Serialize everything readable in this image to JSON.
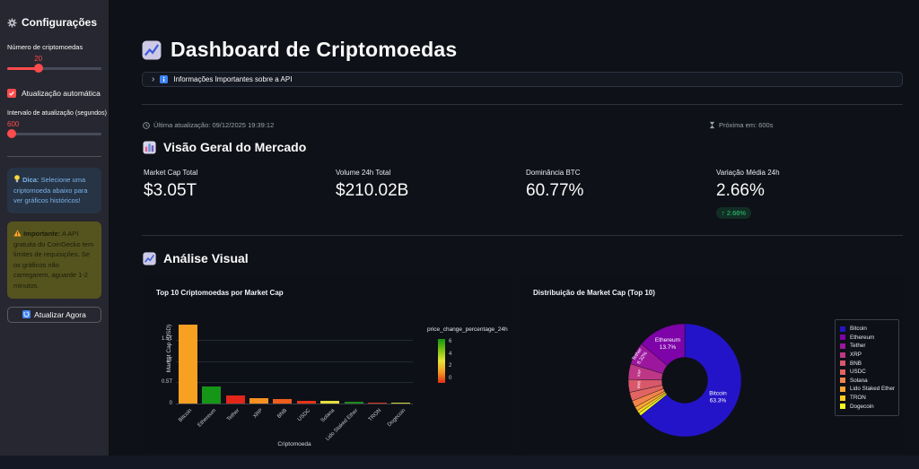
{
  "sidebar": {
    "title": "Configurações",
    "count_slider": {
      "label": "Número de criptomoedas",
      "value": "20"
    },
    "auto_checkbox": {
      "label": "Atualização automática",
      "checked": true
    },
    "interval_slider": {
      "label": "Intervalo de atualização (segundos)",
      "value": "600"
    },
    "tip": {
      "title": "Dica:",
      "text": " Selecione uma criptomoeda abaixo para ver gráficos históricos!"
    },
    "warning": {
      "title": "Importante:",
      "text": " A API gratuita do CoinGecko tem limites de requisições. Se os gráficos não carregarem, aguarde 1-2 minutos."
    },
    "refresh_button": "Atualizar Agora"
  },
  "header": {
    "title": "Dashboard de Criptomoedas"
  },
  "expander": {
    "chevron": "›",
    "label": "Informações Importantes sobre a API"
  },
  "status_bar": {
    "last_update": "Última atualização: 09/12/2025 19:39:12",
    "next_update": "Próxima em: 600s"
  },
  "market_overview": {
    "title": "Visão Geral do Mercado",
    "metrics": [
      {
        "label": "Market Cap Total",
        "value": "$3.05T"
      },
      {
        "label": "Volume 24h Total",
        "value": "$210.02B"
      },
      {
        "label": "Dominância BTC",
        "value": "60.77%"
      },
      {
        "label": "Variação Média 24h",
        "value": "2.66%",
        "delta": "↑ 2.66%"
      }
    ]
  },
  "analysis": {
    "title": "Análise Visual"
  },
  "chart_data": [
    {
      "type": "bar",
      "title": "Top 10 Criptomoedas por Market Cap",
      "xlabel": "Criptomoeda",
      "ylabel": "Market Cap (USD)",
      "ylim": [
        0,
        2.05
      ],
      "grid": true,
      "yticks": [
        {
          "label": "0",
          "value": 0
        },
        {
          "label": "0.5T",
          "value": 0.5
        },
        {
          "label": "1T",
          "value": 1.0
        },
        {
          "label": "1.5T",
          "value": 1.5
        }
      ],
      "categories": [
        "Bitcoin",
        "Ethereum",
        "Tether",
        "XRP",
        "BNB",
        "USDC",
        "Solana",
        "Lido Staked Ether",
        "TRON",
        "Dogecoin"
      ],
      "values_trillions_usd": [
        1.85,
        0.4,
        0.185,
        0.12,
        0.115,
        0.072,
        0.07,
        0.032,
        0.027,
        0.02
      ],
      "bar_colors": [
        "#f7a021",
        "#169616",
        "#e3261a",
        "#f59121",
        "#ef5d1c",
        "#e63318",
        "#e3df3a",
        "#1d8a1d",
        "#d8301f",
        "#c8cf2e"
      ],
      "colorbar": {
        "title": "price_change_percentage_24h",
        "ticks": [
          "6",
          "4",
          "2",
          "0"
        ],
        "gradient": [
          "#129612",
          "#7ac113",
          "#e8e337",
          "#f59b23",
          "#e02f12"
        ]
      }
    },
    {
      "type": "pie",
      "title": "Distribuição de Market Cap (Top 10)",
      "hole": 0.4,
      "legend_position": "right",
      "labels": [
        "Bitcoin",
        "Ethereum",
        "Tether",
        "XRP",
        "BNB",
        "USDC",
        "Solana",
        "Lido Staked Ether",
        "TRON",
        "Dogecoin"
      ],
      "values_percent": [
        63.3,
        13.7,
        6.32,
        4.4,
        3.6,
        2.5,
        1.9,
        1.1,
        0.9,
        0.8
      ],
      "slice_colors": [
        "#2414c9",
        "#7e03a8",
        "#9c179e",
        "#bd3786",
        "#d8576b",
        "#e16462",
        "#f2844b",
        "#fca636",
        "#fcce25",
        "#f0f921"
      ],
      "visible_slice_labels": [
        {
          "name": "Bitcoin",
          "pct": "63.3%"
        },
        {
          "name": "Ethereum",
          "pct": "13.7%"
        },
        {
          "name": "Tether",
          "pct": "6.32%"
        }
      ]
    }
  ]
}
